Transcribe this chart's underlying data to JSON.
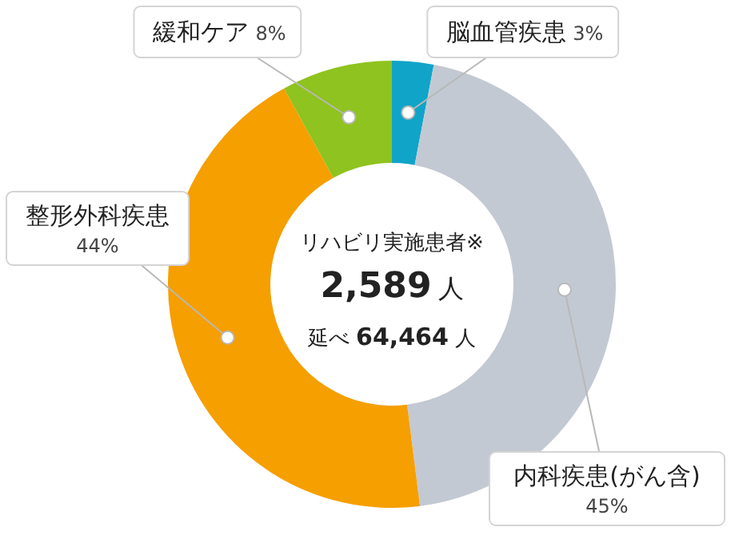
{
  "chart_data": {
    "type": "donut",
    "categories": [
      "脳血管疾患",
      "内科疾患(がん含)",
      "整形外科疾患",
      "緩和ケア"
    ],
    "values": [
      3,
      45,
      44,
      8
    ],
    "colors": [
      "#10a4c8",
      "#c3c9d2",
      "#f59f00",
      "#8fc31f"
    ],
    "value_labels": [
      "3%",
      "45%",
      "44%",
      "8%"
    ],
    "annotations": [
      "リハビリ実施患者※",
      "2,589 人",
      "延べ 64,464 人"
    ]
  }
}
